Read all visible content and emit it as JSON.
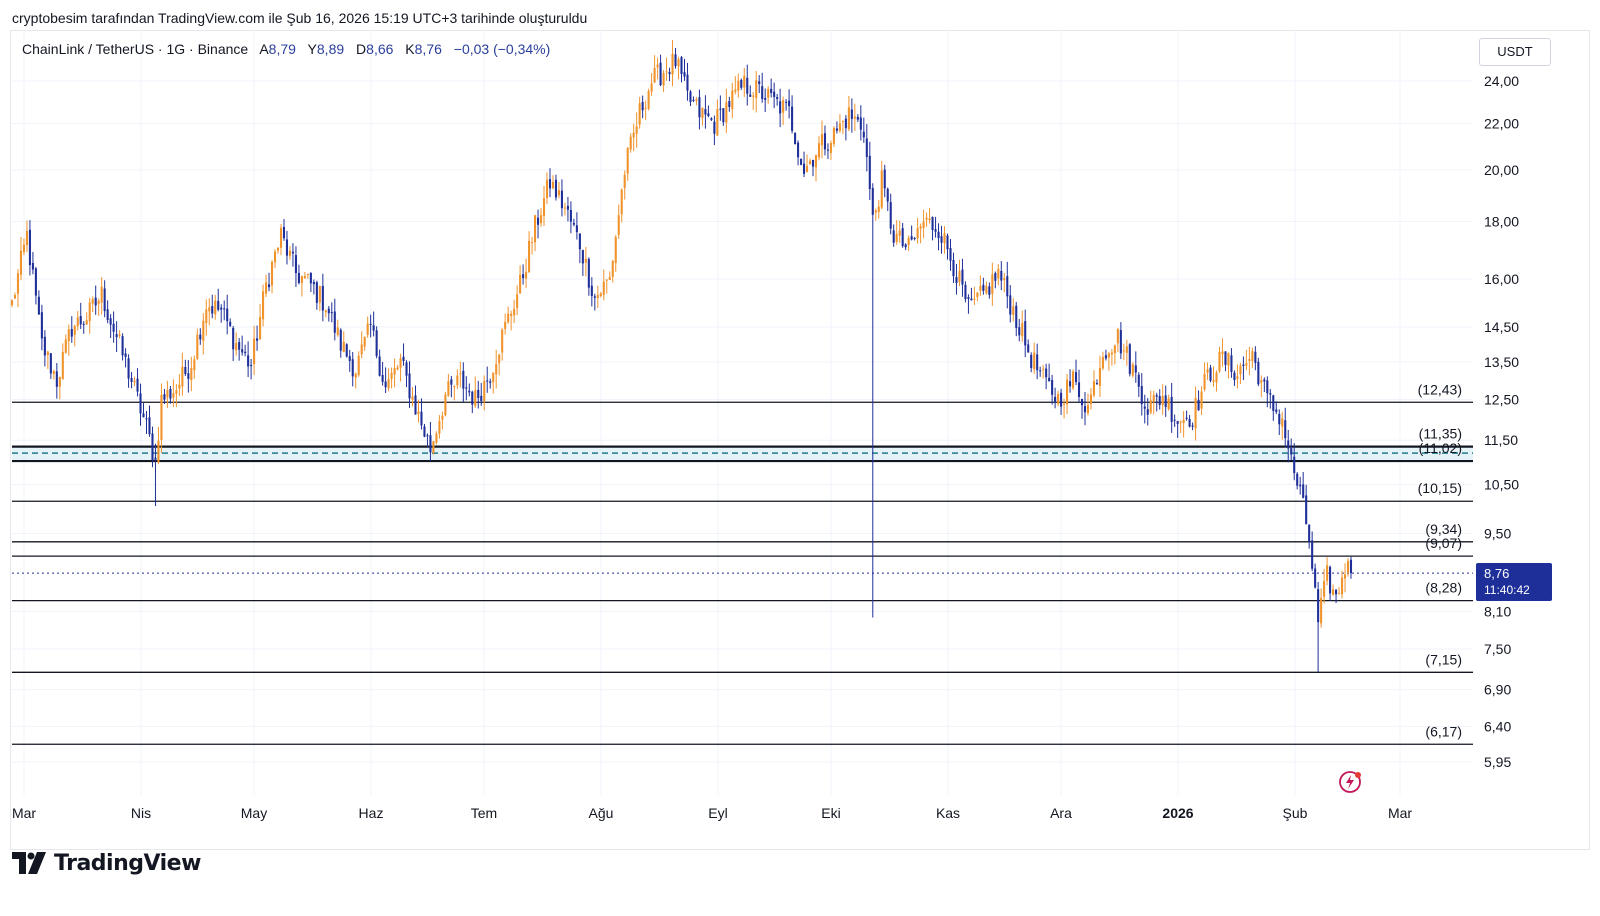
{
  "header": {
    "caption": "cryptobesim tarafından TradingView.com ile Şub 16, 2026 15:19 UTC+3 tarihinde oluşturuldu"
  },
  "legend": {
    "symbol": "ChainLink / TetherUS · 1G · Binance",
    "open_label": "A",
    "open": "8,79",
    "high_label": "Y",
    "high": "8,89",
    "low_label": "D",
    "low": "8,66",
    "close_label": "K",
    "close": "8,76",
    "change": "−0,03 (−0,34%)"
  },
  "currency": "USDT",
  "price_tag": {
    "price": "8,76",
    "countdown": "11:40:42"
  },
  "brand": "TradingView",
  "colors": {
    "up": "#f0932b",
    "down": "#1e2f99",
    "level_line": "#131722",
    "dashed_level": "#1e7c8c",
    "zone_fill": "#cfe9f2",
    "grid": "#f0f3fa",
    "price_tag_bg": "#1e2f99"
  },
  "chart_data": {
    "type": "candlestick",
    "scale": "log",
    "x_ticks": [
      "Mar",
      "Nis",
      "May",
      "Haz",
      "Tem",
      "Ağu",
      "Eyl",
      "Eki",
      "Kas",
      "Ara",
      "2026",
      "Şub",
      "Mar"
    ],
    "y_ticks": [
      "24,00",
      "22,00",
      "20,00",
      "18,00",
      "16,00",
      "14,50",
      "13,50",
      "12,50",
      "11,50",
      "10,50",
      "9,50",
      "8,10",
      "7,50",
      "6,90",
      "6,40",
      "5,95"
    ],
    "y_tick_values": [
      24.0,
      22.0,
      20.0,
      18.0,
      16.0,
      14.5,
      13.5,
      12.5,
      11.5,
      10.5,
      9.5,
      8.1,
      7.5,
      6.9,
      6.4,
      5.95
    ],
    "ylim": [
      5.8,
      26.2
    ],
    "levels": [
      {
        "value": 12.43,
        "label": "(12,43)"
      },
      {
        "value": 11.35,
        "label": "(11,35)"
      },
      {
        "value": 11.02,
        "label": "(11,02)"
      },
      {
        "value": 10.15,
        "label": "(10,15)"
      },
      {
        "value": 9.34,
        "label": "(9,34)"
      },
      {
        "value": 9.07,
        "label": "(9,07)"
      },
      {
        "value": 8.28,
        "label": "(8,28)"
      },
      {
        "value": 7.15,
        "label": "(7,15)"
      },
      {
        "value": 6.17,
        "label": "(6,17)"
      }
    ],
    "dashed_level": 11.2,
    "last_price": 8.76,
    "anchors": [
      [
        0,
        15.2
      ],
      [
        5,
        17.5
      ],
      [
        10,
        14.0
      ],
      [
        15,
        13.0
      ],
      [
        20,
        14.5
      ],
      [
        25,
        14.8
      ],
      [
        30,
        15.5
      ],
      [
        35,
        14.2
      ],
      [
        40,
        13.0
      ],
      [
        45,
        11.8
      ],
      [
        48,
        11.0
      ],
      [
        50,
        12.5
      ],
      [
        55,
        12.8
      ],
      [
        60,
        13.5
      ],
      [
        65,
        15.2
      ],
      [
        70,
        15.0
      ],
      [
        75,
        14.0
      ],
      [
        80,
        13.4
      ],
      [
        85,
        15.8
      ],
      [
        90,
        17.5
      ],
      [
        95,
        16.2
      ],
      [
        100,
        15.8
      ],
      [
        105,
        15.2
      ],
      [
        110,
        14.0
      ],
      [
        115,
        13.3
      ],
      [
        120,
        14.5
      ],
      [
        125,
        12.8
      ],
      [
        130,
        13.5
      ],
      [
        135,
        12.3
      ],
      [
        140,
        11.3
      ],
      [
        145,
        12.6
      ],
      [
        150,
        13.0
      ],
      [
        155,
        12.5
      ],
      [
        160,
        13.2
      ],
      [
        165,
        14.5
      ],
      [
        170,
        15.8
      ],
      [
        175,
        17.8
      ],
      [
        180,
        19.5
      ],
      [
        185,
        18.5
      ],
      [
        190,
        17.2
      ],
      [
        195,
        15.4
      ],
      [
        200,
        16.0
      ],
      [
        205,
        20.0
      ],
      [
        210,
        22.5
      ],
      [
        214,
        24.0
      ],
      [
        218,
        24.5
      ],
      [
        222,
        25.0
      ],
      [
        226,
        23.2
      ],
      [
        230,
        22.5
      ],
      [
        235,
        22.0
      ],
      [
        240,
        23.0
      ],
      [
        245,
        23.8
      ],
      [
        250,
        23.5
      ],
      [
        255,
        23.0
      ],
      [
        260,
        22.5
      ],
      [
        265,
        20.0
      ],
      [
        270,
        21.0
      ],
      [
        275,
        21.5
      ],
      [
        280,
        22.4
      ],
      [
        285,
        21.8
      ],
      [
        288,
        18.0
      ],
      [
        291,
        19.5
      ],
      [
        295,
        17.5
      ],
      [
        300,
        17.0
      ],
      [
        305,
        18.0
      ],
      [
        310,
        17.8
      ],
      [
        315,
        16.5
      ],
      [
        320,
        15.0
      ],
      [
        325,
        15.5
      ],
      [
        330,
        16.2
      ],
      [
        335,
        15.0
      ],
      [
        340,
        13.8
      ],
      [
        345,
        13.0
      ],
      [
        350,
        12.5
      ],
      [
        355,
        13.0
      ],
      [
        360,
        12.3
      ],
      [
        365,
        13.8
      ],
      [
        370,
        14.2
      ],
      [
        375,
        13.3
      ],
      [
        380,
        12.3
      ],
      [
        385,
        12.6
      ],
      [
        390,
        12.0
      ],
      [
        395,
        12.1
      ],
      [
        400,
        13.1
      ],
      [
        405,
        13.6
      ],
      [
        410,
        13.2
      ],
      [
        415,
        13.7
      ],
      [
        420,
        12.5
      ],
      [
        425,
        12.0
      ],
      [
        428,
        11.0
      ],
      [
        431,
        10.3
      ],
      [
        434,
        9.4
      ],
      [
        437,
        7.9
      ],
      [
        440,
        8.7
      ],
      [
        443,
        8.3
      ],
      [
        446,
        8.9
      ],
      [
        448,
        8.76
      ]
    ]
  }
}
